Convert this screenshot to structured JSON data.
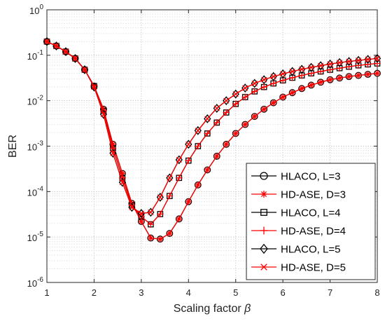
{
  "chart_data": {
    "type": "line",
    "title": "",
    "xlabel": "Scaling factor",
    "xlabel_symbol": "β",
    "ylabel": "BER",
    "xlim": [
      1,
      8
    ],
    "ylim": [
      1e-06,
      1
    ],
    "yscale": "log",
    "grid": true,
    "legend_position": "bottom-right",
    "x_ticks": [
      1,
      2,
      3,
      4,
      5,
      6,
      7,
      8
    ],
    "y_ticks": [
      {
        "value": 1e-06,
        "exp": "-6"
      },
      {
        "value": 1e-05,
        "exp": "-5"
      },
      {
        "value": 0.0001,
        "exp": "-4"
      },
      {
        "value": 0.001,
        "exp": "-3"
      },
      {
        "value": 0.01,
        "exp": "-2"
      },
      {
        "value": 0.1,
        "exp": "-1"
      },
      {
        "value": 1,
        "exp": "0"
      }
    ],
    "y_tick_base": "10",
    "x": [
      1.0,
      1.2,
      1.4,
      1.6,
      1.8,
      2.0,
      2.2,
      2.4,
      2.6,
      2.8,
      3.0,
      3.2,
      3.4,
      3.6,
      3.8,
      4.0,
      4.2,
      4.4,
      4.6,
      4.8,
      5.0,
      5.2,
      5.4,
      5.6,
      5.8,
      6.0,
      6.2,
      6.4,
      6.6,
      6.8,
      7.0,
      7.2,
      7.4,
      7.6,
      7.8,
      8.0
    ],
    "series": [
      {
        "name": "HLACO, L=3",
        "color": "#000000",
        "marker": "circle",
        "values": [
          0.2,
          0.16,
          0.12,
          0.085,
          0.048,
          0.021,
          0.0065,
          0.0011,
          0.00025,
          5.5e-05,
          2.2e-05,
          9.5e-06,
          9e-06,
          1.2e-05,
          2.5e-05,
          6e-05,
          0.00014,
          0.0003,
          0.0006,
          0.0011,
          0.0019,
          0.003,
          0.0045,
          0.0065,
          0.009,
          0.012,
          0.015,
          0.0185,
          0.022,
          0.0255,
          0.029,
          0.0315,
          0.034,
          0.036,
          0.038,
          0.04
        ]
      },
      {
        "name": "HD-ASE, D=3",
        "color": "#ff0000",
        "marker": "asterisk",
        "values": [
          0.2,
          0.16,
          0.12,
          0.085,
          0.048,
          0.021,
          0.0065,
          0.0011,
          0.00025,
          5.5e-05,
          2.2e-05,
          9.5e-06,
          9e-06,
          1.2e-05,
          2.5e-05,
          6e-05,
          0.00014,
          0.0003,
          0.0006,
          0.0011,
          0.0019,
          0.003,
          0.0045,
          0.0065,
          0.009,
          0.012,
          0.015,
          0.0185,
          0.022,
          0.0255,
          0.029,
          0.0315,
          0.034,
          0.036,
          0.038,
          0.04
        ]
      },
      {
        "name": "HLACO, L=4",
        "color": "#000000",
        "marker": "square",
        "values": [
          0.2,
          0.16,
          0.12,
          0.085,
          0.048,
          0.021,
          0.006,
          0.0009,
          0.0002,
          5e-05,
          2.8e-05,
          1.9e-05,
          3.2e-05,
          8e-05,
          0.0002,
          0.00048,
          0.001,
          0.0019,
          0.0033,
          0.0055,
          0.0085,
          0.012,
          0.016,
          0.02,
          0.024,
          0.028,
          0.032,
          0.036,
          0.04,
          0.044,
          0.048,
          0.052,
          0.056,
          0.06,
          0.063,
          0.066
        ]
      },
      {
        "name": "HD-ASE, D=4",
        "color": "#ff0000",
        "marker": "plus",
        "values": [
          0.2,
          0.16,
          0.12,
          0.085,
          0.048,
          0.021,
          0.006,
          0.0009,
          0.0002,
          5e-05,
          2.8e-05,
          1.9e-05,
          3.2e-05,
          8e-05,
          0.0002,
          0.00048,
          0.001,
          0.0019,
          0.0033,
          0.0055,
          0.0085,
          0.012,
          0.016,
          0.02,
          0.024,
          0.028,
          0.032,
          0.036,
          0.04,
          0.044,
          0.048,
          0.052,
          0.056,
          0.06,
          0.063,
          0.066
        ]
      },
      {
        "name": "HLACO, L=5",
        "color": "#000000",
        "marker": "diamond",
        "values": [
          0.2,
          0.16,
          0.12,
          0.085,
          0.048,
          0.02,
          0.005,
          0.0007,
          0.00016,
          4.5e-05,
          3.3e-05,
          3.5e-05,
          7.5e-05,
          0.0002,
          0.0005,
          0.0011,
          0.0022,
          0.004,
          0.0068,
          0.01,
          0.014,
          0.019,
          0.024,
          0.029,
          0.034,
          0.039,
          0.044,
          0.049,
          0.054,
          0.059,
          0.064,
          0.069,
          0.073,
          0.077,
          0.081,
          0.085
        ]
      },
      {
        "name": "HD-ASE, D=5",
        "color": "#ff0000",
        "marker": "x",
        "values": [
          0.2,
          0.16,
          0.12,
          0.085,
          0.048,
          0.02,
          0.005,
          0.0007,
          0.00016,
          4.5e-05,
          3.3e-05,
          3.5e-05,
          7.5e-05,
          0.0002,
          0.0005,
          0.0011,
          0.0022,
          0.004,
          0.0068,
          0.01,
          0.014,
          0.019,
          0.024,
          0.029,
          0.034,
          0.039,
          0.044,
          0.049,
          0.054,
          0.059,
          0.064,
          0.069,
          0.073,
          0.077,
          0.081,
          0.085
        ]
      }
    ]
  }
}
